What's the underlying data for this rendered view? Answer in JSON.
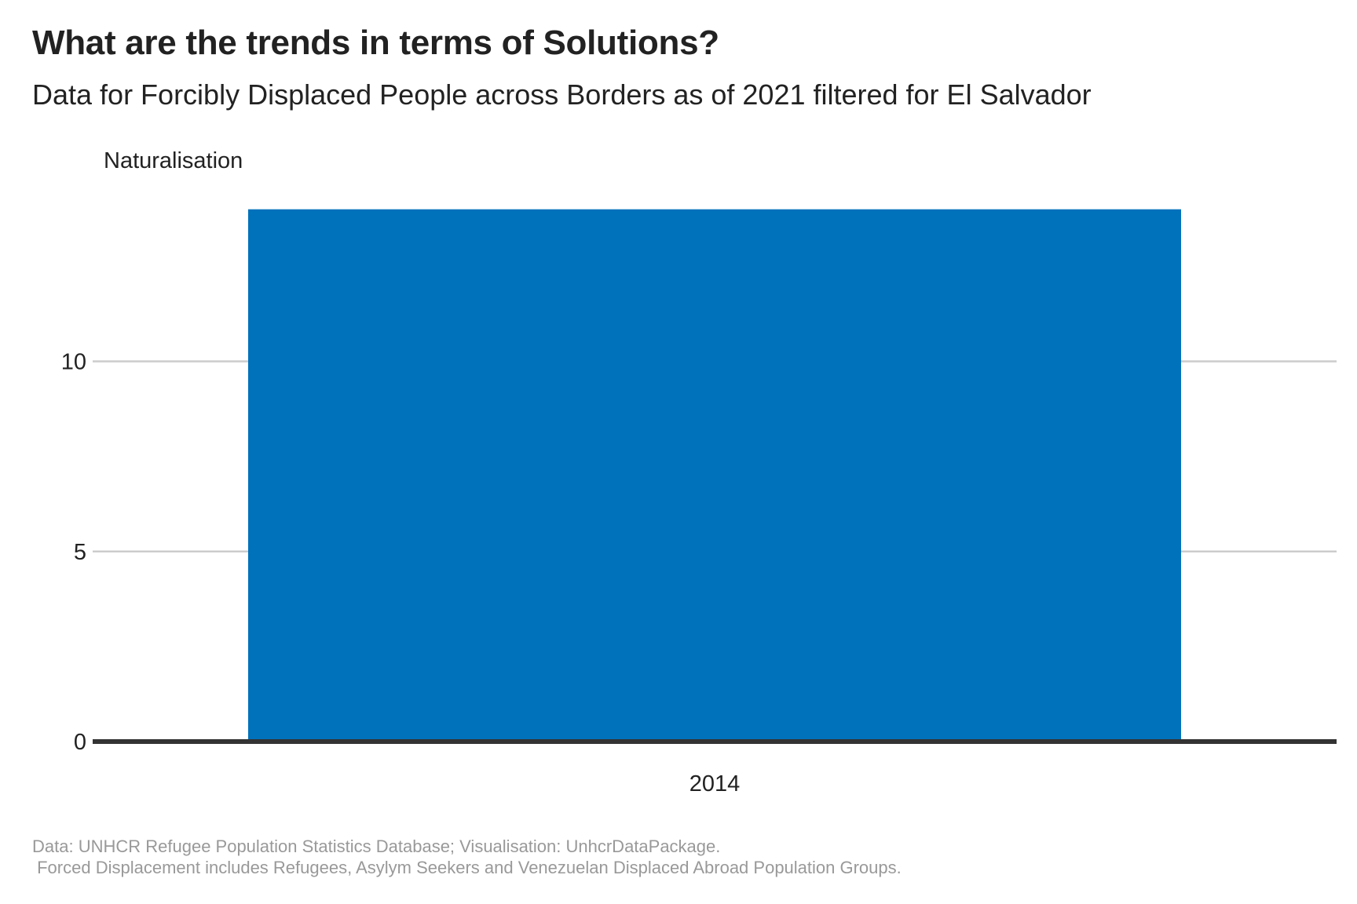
{
  "title": "What are the trends in terms of Solutions?",
  "subtitle": "Data for Forcibly Displaced People across Borders as of 2021 filtered for El Salvador",
  "caption_line1": "Data: UNHCR Refugee Population Statistics Database; Visualisation: UnhcrDataPackage.",
  "caption_line2": " Forced Displacement includes Refugees, Asylym Seekers and Venezuelan Displaced Abroad Population Groups.",
  "colors": {
    "bar": "#0072BC",
    "grid": "#CCCCCC",
    "baseline": "#333333"
  },
  "chart_data": {
    "type": "bar",
    "title": "What are the trends in terms of Solutions?",
    "subtitle": "Data for Forcibly Displaced People across Borders as of 2021 filtered for El Salvador",
    "xlabel": "",
    "ylabel": "Naturalisation",
    "categories": [
      "2014"
    ],
    "values": [
      14
    ],
    "ylim": [
      0,
      14
    ],
    "yticks": [
      0,
      5,
      10
    ],
    "grid": "horizontal",
    "legend": "none"
  }
}
